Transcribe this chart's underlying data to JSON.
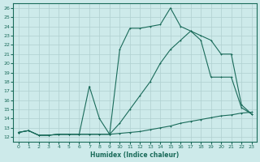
{
  "xlabel": "Humidex (Indice chaleur)",
  "bg_color": "#cdeaea",
  "grid_color": "#b0d0d0",
  "line_color": "#1a6b5a",
  "xlim": [
    -0.5,
    23.5
  ],
  "ylim": [
    11.5,
    26.5
  ],
  "xticks": [
    0,
    1,
    2,
    3,
    4,
    5,
    6,
    7,
    8,
    9,
    10,
    11,
    12,
    13,
    14,
    15,
    16,
    17,
    18,
    19,
    20,
    21,
    22,
    23
  ],
  "yticks": [
    12,
    13,
    14,
    15,
    16,
    17,
    18,
    19,
    20,
    21,
    22,
    23,
    24,
    25,
    26
  ],
  "series1_x": [
    0,
    1,
    2,
    3,
    4,
    5,
    6,
    7,
    8,
    9,
    10,
    11,
    12,
    13,
    14,
    15,
    16,
    17,
    18,
    19,
    20,
    21,
    22,
    23
  ],
  "series1_y": [
    12.5,
    12.7,
    12.2,
    12.2,
    12.3,
    12.3,
    12.3,
    12.3,
    12.3,
    12.3,
    12.4,
    12.5,
    12.6,
    12.8,
    13.0,
    13.2,
    13.5,
    13.7,
    13.9,
    14.1,
    14.3,
    14.4,
    14.6,
    14.7
  ],
  "series2_x": [
    0,
    1,
    2,
    3,
    4,
    5,
    6,
    7,
    8,
    9,
    10,
    11,
    12,
    13,
    14,
    15,
    16,
    17,
    18,
    19,
    20,
    21,
    22,
    23
  ],
  "series2_y": [
    12.5,
    12.7,
    12.2,
    12.2,
    12.3,
    12.3,
    12.3,
    12.3,
    12.3,
    12.3,
    13.5,
    15.0,
    16.5,
    18.0,
    20.0,
    21.5,
    22.5,
    23.5,
    23.0,
    22.5,
    21.0,
    21.0,
    15.5,
    14.5
  ],
  "series3_x": [
    0,
    1,
    2,
    3,
    4,
    5,
    6,
    7,
    8,
    9,
    10,
    11,
    12,
    13,
    14,
    15,
    16,
    17,
    18,
    19,
    20,
    21,
    22,
    23
  ],
  "series3_y": [
    12.5,
    12.7,
    12.2,
    12.2,
    12.3,
    12.3,
    12.3,
    17.5,
    14.0,
    12.3,
    21.5,
    23.8,
    23.8,
    24.0,
    24.2,
    26.0,
    24.0,
    23.5,
    22.5,
    18.5,
    18.5,
    18.5,
    15.2,
    14.5
  ]
}
